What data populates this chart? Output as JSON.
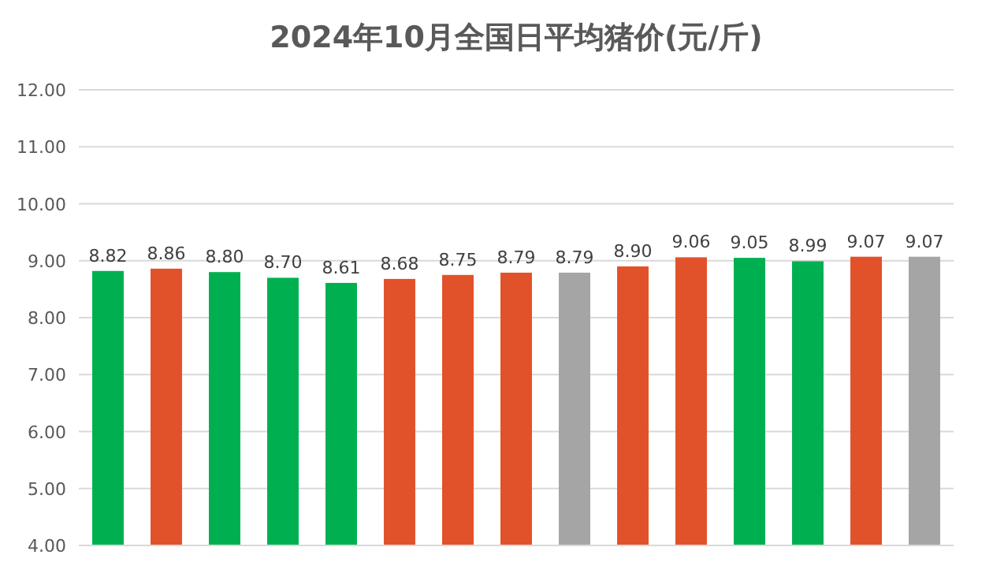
{
  "chart_data": {
    "type": "bar",
    "title": "2024年10月全国日平均猪价(元/斤)",
    "categories": [
      null,
      null,
      null,
      null,
      null,
      null,
      null,
      null,
      null,
      null,
      null,
      null,
      null,
      null,
      null
    ],
    "values": [
      8.82,
      8.86,
      8.8,
      8.7,
      8.61,
      8.68,
      8.75,
      8.79,
      8.79,
      8.9,
      9.06,
      9.05,
      8.99,
      9.07,
      9.07
    ],
    "value_labels": [
      "8.82",
      "8.86",
      "8.80",
      "8.70",
      "8.61",
      "8.68",
      "8.75",
      "8.79",
      "8.79",
      "8.90",
      "9.06",
      "9.05",
      "8.99",
      "9.07",
      "9.07"
    ],
    "colors": [
      "#00b050",
      "#e2522a",
      "#00b050",
      "#00b050",
      "#00b050",
      "#e2522a",
      "#e2522a",
      "#e2522a",
      "#a5a5a5",
      "#e2522a",
      "#e2522a",
      "#00b050",
      "#00b050",
      "#e2522a",
      "#a5a5a5"
    ],
    "ylim": [
      4,
      12
    ],
    "yticks": [
      {
        "value": 4,
        "label": "4.00"
      },
      {
        "value": 5,
        "label": "5.00"
      },
      {
        "value": 6,
        "label": "6.00"
      },
      {
        "value": 7,
        "label": "7.00"
      },
      {
        "value": 8,
        "label": "8.00"
      },
      {
        "value": 9,
        "label": "9.00"
      },
      {
        "value": 10,
        "label": "10.00"
      },
      {
        "value": 11,
        "label": "11.00"
      },
      {
        "value": 12,
        "label": "12.00"
      }
    ],
    "grid": "y",
    "tick_labels": "y"
  }
}
